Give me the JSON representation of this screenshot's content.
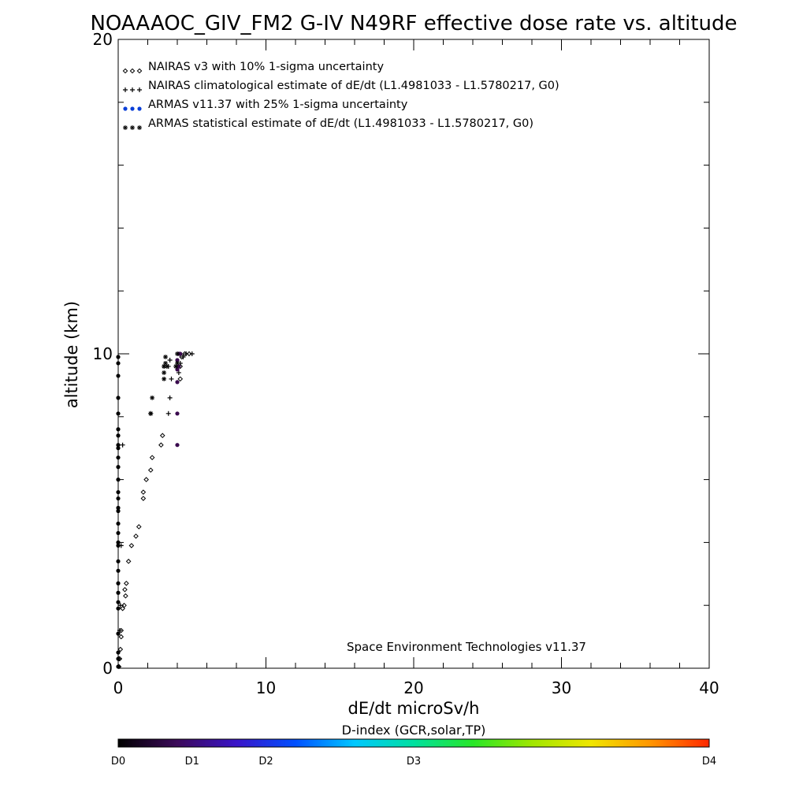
{
  "chart_data": {
    "type": "scatter",
    "title": "NOAAAOC_GIV_FM2 G-IV   N49RF  effective dose rate vs. altitude",
    "xlabel": "dE/dt microSv/h",
    "ylabel": "altitude (km)",
    "xlim": [
      0,
      40
    ],
    "ylim": [
      0,
      20
    ],
    "x_ticks": [
      0,
      10,
      20,
      30,
      40
    ],
    "x_tick_labels": [
      "0",
      "10",
      "20",
      "30",
      "40"
    ],
    "y_ticks": [
      0,
      10,
      20
    ],
    "y_tick_labels": [
      "0",
      "10",
      "20"
    ],
    "grid": false,
    "legend_position": "top-left",
    "credit": "Space Environment Technologies v11.37",
    "legend": [
      {
        "marker": "diamond",
        "markers_text": "◇◇◇",
        "label": "NAIRAS v3 with 10% 1-sigma uncertainty"
      },
      {
        "marker": "plus",
        "markers_text": "+++",
        "label": "NAIRAS climatological estimate of dE/dt (L1.4981033 - L1.5780217, G0)"
      },
      {
        "marker": "dot",
        "markers_text": "●●●",
        "label": "ARMAS v11.37 with 25% 1-sigma uncertainty"
      },
      {
        "marker": "asterisk",
        "markers_text": "***",
        "label": "ARMAS statistical estimate of dE/dt (L1.4981033 - L1.5780217, G0)"
      }
    ],
    "series": [
      {
        "name": "NAIRAS v3 with 10% 1-sigma uncertainty",
        "marker": "diamond",
        "x": [
          0.05,
          0.1,
          0.15,
          0.2,
          0.2,
          0.3,
          0.4,
          0.5,
          0.45,
          0.55,
          0.7,
          0.9,
          1.2,
          1.4,
          1.7,
          1.7,
          1.9,
          2.2,
          2.3,
          2.9,
          3.0,
          4.2,
          4.2,
          4.3,
          4.5,
          4.8
        ],
        "y": [
          0.05,
          0.3,
          0.6,
          1.0,
          1.2,
          1.9,
          2.0,
          2.3,
          2.5,
          2.7,
          3.4,
          3.9,
          4.2,
          4.5,
          5.4,
          5.6,
          6.0,
          6.3,
          6.7,
          7.1,
          7.4,
          9.2,
          9.6,
          9.9,
          10.0,
          10.0
        ]
      },
      {
        "name": "NAIRAS climatological estimate of dE/dt (L1.4981033 - L1.5780217, G0)",
        "marker": "plus",
        "x": [
          0.05,
          0.1,
          0.15,
          0.2,
          0.3,
          3.4,
          3.5,
          3.6,
          3.4,
          3.5,
          4.1,
          4.2,
          4.4,
          4.6,
          5.0
        ],
        "y": [
          0.3,
          1.2,
          2.0,
          3.9,
          7.1,
          8.1,
          8.6,
          9.2,
          9.6,
          9.8,
          9.4,
          9.7,
          9.9,
          10.0,
          10.0
        ]
      },
      {
        "name": "ARMAS v11.37 with 25% 1-sigma uncertainty",
        "marker": "dot",
        "colors": [
          "#000000",
          "#3a0a4e"
        ],
        "x": [
          0,
          0,
          0,
          0,
          0,
          0,
          0,
          0,
          0,
          0,
          0,
          0,
          0,
          0,
          0,
          0,
          0,
          0,
          0,
          0,
          0,
          0,
          0,
          0,
          0,
          0,
          0,
          0,
          0,
          0,
          4.0,
          4.0,
          4.0,
          4.0,
          4.1,
          4.0,
          4.1,
          4.2
        ],
        "y": [
          0.05,
          0.3,
          0.5,
          1.1,
          1.9,
          2.1,
          2.4,
          2.7,
          3.4,
          3.9,
          4.3,
          4.6,
          5.0,
          5.4,
          5.6,
          6.0,
          6.4,
          6.7,
          7.1,
          7.4,
          7.6,
          8.1,
          8.6,
          9.3,
          9.7,
          9.9,
          5.1,
          4.0,
          3.1,
          7.0,
          7.1,
          8.1,
          9.1,
          9.5,
          9.6,
          9.8,
          10.0,
          10.0
        ]
      },
      {
        "name": "ARMAS statistical estimate of dE/dt (L1.4981033 - L1.5780217, G0)",
        "marker": "asterisk",
        "x": [
          2.2,
          2.3,
          2.2,
          3.1,
          3.1,
          3.1,
          3.2,
          3.2,
          3.1,
          3.3,
          3.9,
          4.0,
          4.0
        ],
        "y": [
          8.1,
          8.6,
          8.1,
          9.2,
          9.4,
          9.6,
          9.7,
          9.9,
          9.6,
          9.6,
          9.6,
          9.7,
          10.0
        ]
      }
    ],
    "colorbar": {
      "title": "D-index (GCR,solar,TP)",
      "tick_labels": [
        "D0",
        "D1",
        "D2",
        "D3",
        "D4"
      ],
      "tick_values": [
        0,
        0.125,
        0.25,
        0.5,
        1.0
      ],
      "colors": [
        "#000000",
        "#3c0a5a",
        "#3a14c8",
        "#0050ff",
        "#00c8ff",
        "#00e0a0",
        "#28e628",
        "#a0e600",
        "#f0e600",
        "#ff9600",
        "#ff2800"
      ]
    }
  }
}
